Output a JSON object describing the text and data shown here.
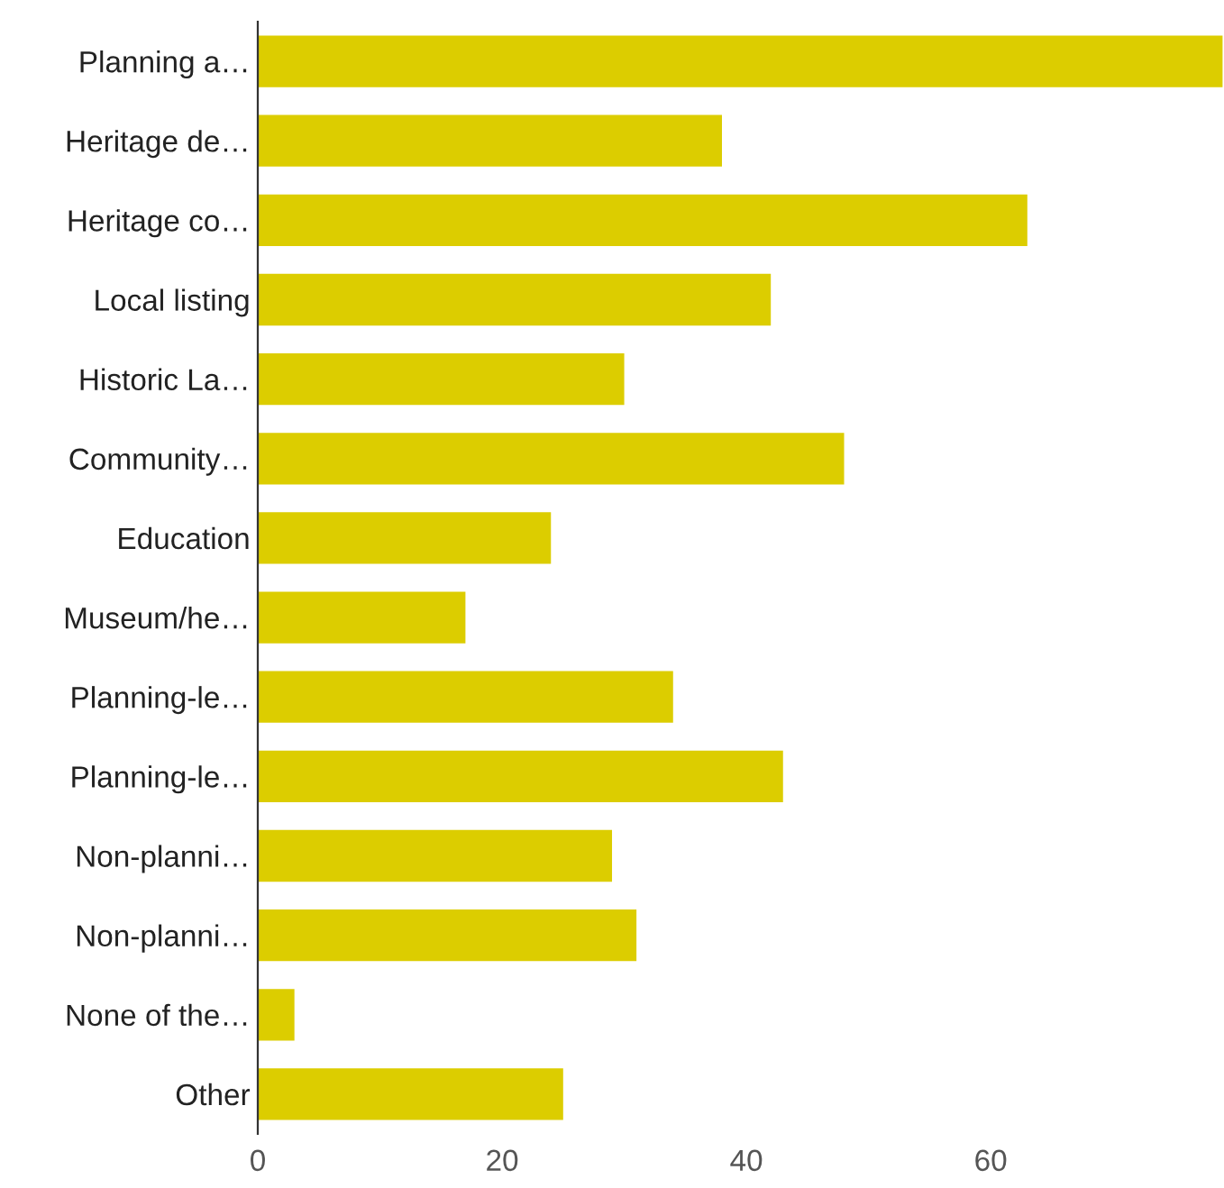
{
  "chart_data": {
    "type": "bar",
    "orientation": "horizontal",
    "categories": [
      "Planning a…",
      "Heritage de…",
      "Heritage co…",
      "Local listing",
      "Historic La…",
      "Community…",
      "Education",
      "Museum/he…",
      "Planning-le…",
      "Planning-le…",
      "Non-planni…",
      "Non-planni…",
      "None of the…",
      "Other"
    ],
    "values": [
      79,
      38,
      63,
      42,
      30,
      48,
      24,
      17,
      34,
      43,
      29,
      31,
      3,
      25
    ],
    "color": "#dccd00",
    "xlim": [
      0,
      79
    ],
    "xticks": [
      0,
      20,
      40,
      60
    ],
    "grid": false,
    "legend": false
  }
}
